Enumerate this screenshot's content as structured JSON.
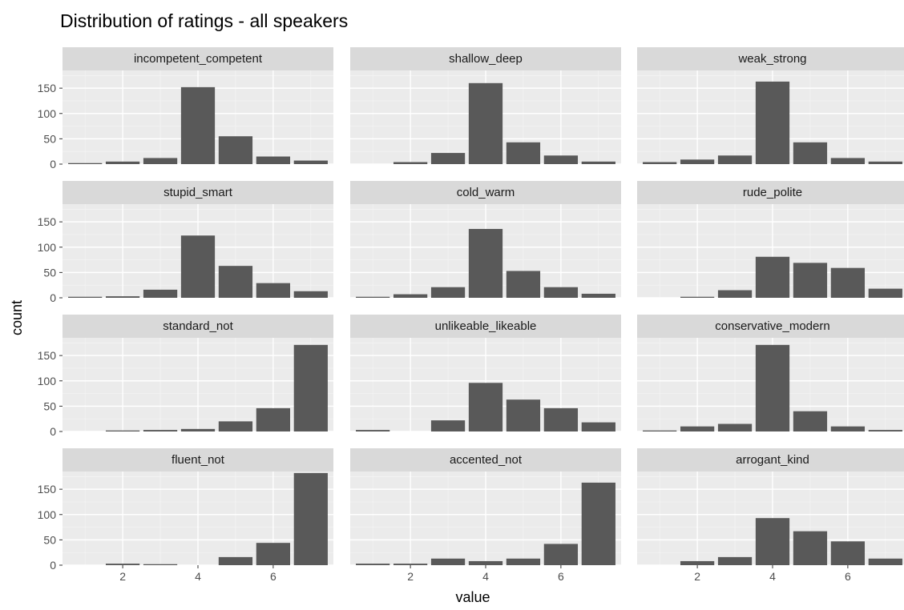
{
  "chart_data": {
    "type": "bar",
    "title": "Distribution of ratings - all speakers",
    "xlabel": "value",
    "ylabel": "count",
    "x": [
      1,
      2,
      3,
      4,
      5,
      6,
      7
    ],
    "xlim": [
      0.4,
      7.6
    ],
    "ylim": [
      0,
      185
    ],
    "x_ticks": [
      2,
      4,
      6
    ],
    "y_ticks": [
      0,
      50,
      100,
      150
    ],
    "grid": true,
    "layout": "facet-wrap 4 rows x 3 columns, shared axes",
    "bar_color": "#595959",
    "panel_background": "#ebebeb",
    "strip_background": "#d9d9d9",
    "panels": [
      {
        "name": "incompetent_competent",
        "values": [
          2,
          5,
          12,
          152,
          55,
          15,
          7
        ]
      },
      {
        "name": "shallow_deep",
        "values": [
          0,
          4,
          22,
          160,
          43,
          17,
          5
        ]
      },
      {
        "name": "weak_strong",
        "values": [
          4,
          9,
          17,
          163,
          43,
          12,
          5
        ]
      },
      {
        "name": "stupid_smart",
        "values": [
          2,
          3,
          16,
          123,
          63,
          29,
          13
        ]
      },
      {
        "name": "cold_warm",
        "values": [
          2,
          7,
          21,
          136,
          53,
          21,
          8
        ]
      },
      {
        "name": "rude_polite",
        "values": [
          0,
          2,
          15,
          81,
          69,
          59,
          18
        ]
      },
      {
        "name": "standard_not",
        "values": [
          0,
          2,
          3,
          5,
          20,
          46,
          171
        ]
      },
      {
        "name": "unlikeable_likeable",
        "values": [
          3,
          0,
          22,
          96,
          63,
          46,
          18
        ]
      },
      {
        "name": "conservative_modern",
        "values": [
          2,
          10,
          15,
          171,
          40,
          10,
          3
        ]
      },
      {
        "name": "fluent_not",
        "values": [
          0,
          3,
          2,
          0,
          16,
          44,
          182
        ]
      },
      {
        "name": "accented_not",
        "values": [
          3,
          3,
          13,
          8,
          13,
          42,
          163
        ]
      },
      {
        "name": "arrogant_kind",
        "values": [
          0,
          8,
          16,
          93,
          67,
          47,
          13
        ]
      }
    ]
  }
}
